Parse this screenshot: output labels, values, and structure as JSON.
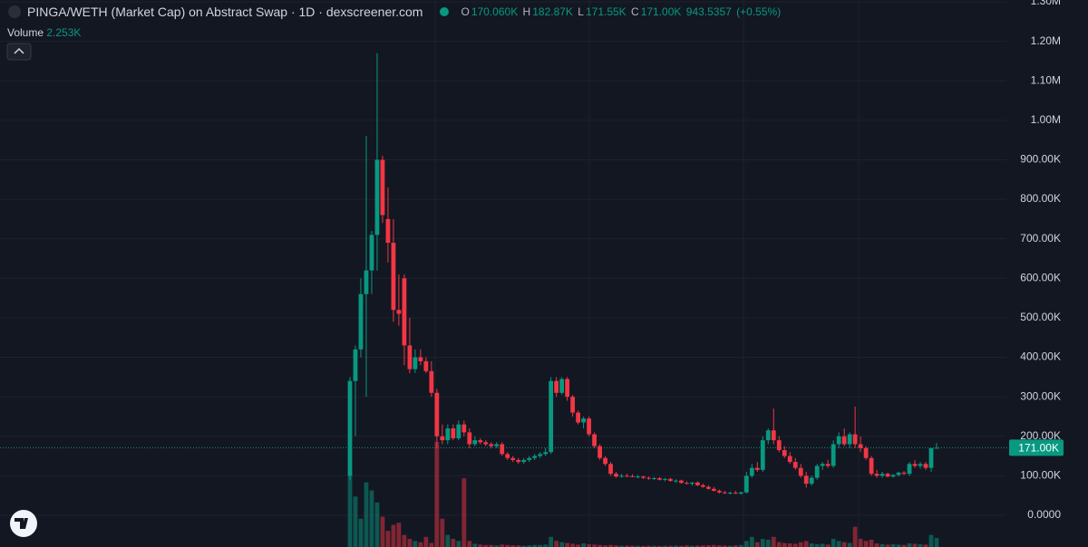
{
  "chart_data": {
    "type": "candlestick",
    "title": "PINGA/WETH (Market Cap) on Abstract Swap · 1D · dexscreener.com",
    "legend": {
      "open_key": "O",
      "open": "170.060K",
      "high_key": "H",
      "high": "182.87K",
      "low_key": "L",
      "low": "171.55K",
      "close_key": "C",
      "close": "171.00K",
      "change": "943.5357",
      "change_pct": "(+0.55%)"
    },
    "volume_title": "Volume",
    "volume_last": "2.253K",
    "up_color": "#089981",
    "down_color": "#f23645",
    "ylim": [
      -80300,
      1304600
    ],
    "yticks": [
      {
        "value": 0,
        "label": "0.0000"
      },
      {
        "value": 100000,
        "label": "100.00K"
      },
      {
        "value": 200000,
        "label": "200.00K"
      },
      {
        "value": 300000,
        "label": "300.00K"
      },
      {
        "value": 400000,
        "label": "400.00K"
      },
      {
        "value": 500000,
        "label": "500.00K"
      },
      {
        "value": 600000,
        "label": "600.00K"
      },
      {
        "value": 700000,
        "label": "700.00K"
      },
      {
        "value": 800000,
        "label": "800.00K"
      },
      {
        "value": 900000,
        "label": "900.00K"
      },
      {
        "value": 1000000,
        "label": "1.00M"
      },
      {
        "value": 1100000,
        "label": "1.10M"
      },
      {
        "value": 1200000,
        "label": "1.20M"
      },
      {
        "value": 1300000,
        "label": "1.30M"
      }
    ],
    "grid": true,
    "last_price": {
      "value": 171000,
      "label": "171.00K"
    },
    "open": [
      100000,
      340000,
      420000,
      560000,
      620000,
      710000,
      900000,
      750000,
      690000,
      520000,
      600000,
      430000,
      370000,
      400000,
      390000,
      365000,
      310000,
      200000,
      190000,
      220000,
      195000,
      230000,
      210000,
      180000,
      190000,
      185000,
      180000,
      175000,
      180000,
      155000,
      145000,
      140000,
      135000,
      140000,
      145000,
      150000,
      155000,
      160000,
      340000,
      310000,
      345000,
      300000,
      260000,
      235000,
      245000,
      205000,
      175000,
      145000,
      130000,
      105000,
      98000,
      100000,
      99000,
      97000,
      98000,
      95000,
      93000,
      94000,
      90000,
      92000,
      87000,
      88000,
      82000,
      80000,
      83000,
      76000,
      72000,
      67000,
      62000,
      58000,
      56000,
      57000,
      55000,
      58000,
      100000,
      120000,
      115000,
      190000,
      215000,
      190000,
      165000,
      150000,
      135000,
      120000,
      100000,
      80000,
      95000,
      125000,
      130000,
      125000,
      180000,
      200000,
      180000,
      205000,
      180000,
      170000,
      145000,
      105000,
      100000,
      105000,
      98000,
      102000,
      108000,
      105000,
      130000,
      125000,
      130000,
      120000,
      170060
    ],
    "high": [
      350000,
      430000,
      600000,
      960000,
      720000,
      1170000,
      910000,
      830000,
      750000,
      610000,
      610000,
      500000,
      420000,
      420000,
      400000,
      390000,
      320000,
      230000,
      230000,
      230000,
      240000,
      240000,
      220000,
      200000,
      195000,
      190000,
      185000,
      185000,
      185000,
      160000,
      150000,
      145000,
      145000,
      150000,
      155000,
      160000,
      170000,
      350000,
      350000,
      350000,
      350000,
      305000,
      265000,
      250000,
      250000,
      210000,
      180000,
      150000,
      135000,
      110000,
      105000,
      105000,
      104000,
      102000,
      100000,
      98000,
      97000,
      97000,
      94000,
      95000,
      91000,
      90000,
      86000,
      84000,
      86000,
      80000,
      76000,
      72000,
      65000,
      62000,
      60000,
      62000,
      60000,
      110000,
      130000,
      135000,
      200000,
      220000,
      270000,
      200000,
      175000,
      160000,
      145000,
      130000,
      110000,
      100000,
      130000,
      135000,
      140000,
      190000,
      210000,
      220000,
      210000,
      275000,
      200000,
      175000,
      150000,
      115000,
      110000,
      108000,
      105000,
      110000,
      112000,
      135000,
      140000,
      135000,
      135000,
      170000,
      182870
    ],
    "low": [
      90000,
      200000,
      400000,
      300000,
      560000,
      620000,
      740000,
      640000,
      490000,
      480000,
      380000,
      360000,
      360000,
      380000,
      360000,
      300000,
      170000,
      180000,
      180000,
      190000,
      190000,
      200000,
      170000,
      175000,
      180000,
      175000,
      170000,
      170000,
      150000,
      140000,
      135000,
      130000,
      130000,
      135000,
      140000,
      145000,
      150000,
      155000,
      300000,
      305000,
      290000,
      250000,
      230000,
      220000,
      200000,
      170000,
      140000,
      125000,
      100000,
      95000,
      95000,
      97000,
      96000,
      94000,
      92000,
      90000,
      89000,
      88000,
      86000,
      85000,
      82000,
      80000,
      78000,
      75000,
      74000,
      70000,
      65000,
      60000,
      55000,
      54000,
      53000,
      54000,
      52000,
      55000,
      95000,
      110000,
      110000,
      180000,
      180000,
      160000,
      145000,
      130000,
      115000,
      95000,
      70000,
      75000,
      90000,
      115000,
      120000,
      120000,
      170000,
      175000,
      170000,
      170000,
      160000,
      140000,
      100000,
      95000,
      95000,
      96000,
      95000,
      98000,
      102000,
      100000,
      120000,
      118000,
      115000,
      110000,
      171550
    ],
    "close": [
      340000,
      420000,
      560000,
      620000,
      710000,
      900000,
      760000,
      690000,
      520000,
      510000,
      430000,
      370000,
      400000,
      390000,
      365000,
      310000,
      200000,
      190000,
      220000,
      195000,
      230000,
      210000,
      180000,
      190000,
      185000,
      180000,
      175000,
      180000,
      155000,
      145000,
      140000,
      135000,
      140000,
      145000,
      150000,
      155000,
      160000,
      340000,
      310000,
      345000,
      300000,
      260000,
      235000,
      245000,
      205000,
      175000,
      145000,
      130000,
      105000,
      98000,
      100000,
      99000,
      97000,
      98000,
      95000,
      93000,
      94000,
      90000,
      92000,
      87000,
      88000,
      82000,
      80000,
      83000,
      76000,
      72000,
      67000,
      62000,
      58000,
      56000,
      57000,
      55000,
      58000,
      100000,
      120000,
      115000,
      190000,
      215000,
      190000,
      165000,
      150000,
      135000,
      120000,
      100000,
      80000,
      95000,
      125000,
      130000,
      125000,
      180000,
      200000,
      180000,
      205000,
      180000,
      170000,
      145000,
      105000,
      100000,
      105000,
      98000,
      102000,
      108000,
      105000,
      130000,
      125000,
      130000,
      120000,
      170060,
      171000
    ],
    "volume": [
      18500,
      12500,
      7000,
      16000,
      14000,
      11000,
      7500,
      4000,
      5500,
      6000,
      3000,
      2000,
      1500,
      1200,
      2500,
      1000,
      26000,
      7000,
      3000,
      2000,
      1500,
      17000,
      1500,
      800,
      600,
      500,
      500,
      400,
      600,
      500,
      400,
      400,
      300,
      400,
      500,
      500,
      600,
      2500,
      1500,
      1200,
      1000,
      800,
      600,
      900,
      700,
      600,
      500,
      400,
      500,
      400,
      300,
      350,
      300,
      300,
      250,
      300,
      300,
      250,
      300,
      300,
      350,
      300,
      400,
      300,
      350,
      400,
      450,
      500,
      400,
      350,
      300,
      400,
      500,
      1500,
      2500,
      1200,
      2000,
      1800,
      2500,
      1200,
      1000,
      900,
      800,
      1200,
      1500,
      900,
      700,
      800,
      600,
      2000,
      1500,
      1200,
      1000,
      5000,
      2000,
      1500,
      1800,
      900,
      700,
      600,
      700,
      600,
      500,
      900,
      800,
      700,
      600,
      3000,
      2253
    ]
  }
}
